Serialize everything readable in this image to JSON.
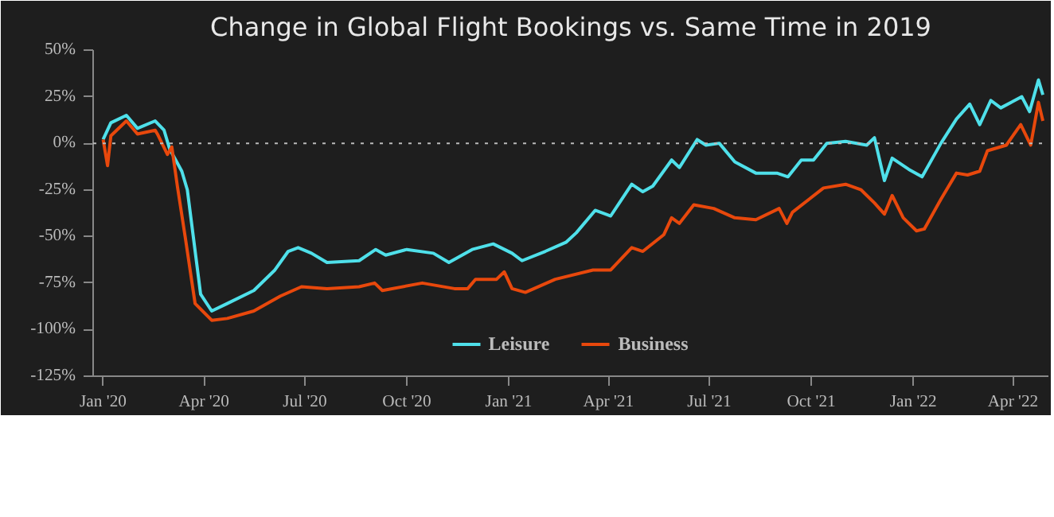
{
  "chart_data": {
    "type": "line",
    "title": "Change in Global Flight Bookings vs. Same Time in 2019",
    "xlim": [
      "2019-12-23",
      "2022-05-03"
    ],
    "ylim": [
      -125,
      50
    ],
    "xticks": [
      {
        "value": "2020-01-01",
        "label": "Jan '20"
      },
      {
        "value": "2020-04-01",
        "label": "Apr '20"
      },
      {
        "value": "2020-07-01",
        "label": "Jul '20"
      },
      {
        "value": "2020-10-01",
        "label": "Oct '20"
      },
      {
        "value": "2021-01-01",
        "label": "Jan '21"
      },
      {
        "value": "2021-04-01",
        "label": "Apr '21"
      },
      {
        "value": "2021-07-01",
        "label": "Jul '21"
      },
      {
        "value": "2021-10-01",
        "label": "Oct '21"
      },
      {
        "value": "2022-01-01",
        "label": "Jan '22"
      },
      {
        "value": "2022-04-01",
        "label": "Apr '22"
      }
    ],
    "yticks": [
      {
        "value": 50,
        "label": "50%"
      },
      {
        "value": 25,
        "label": "25%"
      },
      {
        "value": 0,
        "label": "0%"
      },
      {
        "value": -25,
        "label": "-25%"
      },
      {
        "value": -50,
        "label": "-50%"
      },
      {
        "value": -75,
        "label": "-75%"
      },
      {
        "value": -100,
        "label": "-100%"
      },
      {
        "value": -125,
        "label": "-125%"
      }
    ],
    "grid": false,
    "legend": "bottom",
    "line_style": "solid",
    "ref_lines": [
      {
        "axis": "y",
        "value": 0,
        "label": null,
        "color": "#bbbbbb",
        "line_style": "dotted"
      }
    ],
    "series": [
      {
        "name": "Leisure",
        "color": "#4fe0ea",
        "x": [
          "2020-01-01",
          "2020-01-08",
          "2020-01-22",
          "2020-02-01",
          "2020-02-17",
          "2020-02-25",
          "2020-03-01",
          "2020-03-12",
          "2020-03-17",
          "2020-03-29",
          "2020-04-08",
          "2020-04-22",
          "2020-05-16",
          "2020-06-04",
          "2020-06-16",
          "2020-06-25",
          "2020-07-07",
          "2020-07-21",
          "2020-08-19",
          "2020-09-03",
          "2020-09-12",
          "2020-10-01",
          "2020-10-25",
          "2020-11-08",
          "2020-11-29",
          "2020-12-18",
          "2021-01-04",
          "2021-01-13",
          "2021-02-03",
          "2021-02-22",
          "2021-03-03",
          "2021-03-20",
          "2021-04-03",
          "2021-04-22",
          "2021-05-02",
          "2021-05-11",
          "2021-05-28",
          "2021-06-04",
          "2021-06-20",
          "2021-06-28",
          "2021-07-10",
          "2021-07-24",
          "2021-08-12",
          "2021-08-31",
          "2021-09-10",
          "2021-09-22",
          "2021-10-03",
          "2021-10-15",
          "2021-11-01",
          "2021-11-20",
          "2021-11-27",
          "2021-12-06",
          "2021-12-13",
          "2021-12-28",
          "2022-01-09",
          "2022-01-26",
          "2022-02-09",
          "2022-02-21",
          "2022-03-02",
          "2022-03-12",
          "2022-03-21",
          "2022-04-09",
          "2022-04-16",
          "2022-04-24",
          "2022-04-28"
        ],
        "values": [
          2,
          11,
          15,
          8,
          12,
          7,
          -3,
          -15,
          -25,
          -81,
          -90,
          -86,
          -79,
          -68,
          -58,
          -56,
          -59,
          -64,
          -63,
          -57,
          -60,
          -57,
          -59,
          -64,
          -57,
          -54,
          -59,
          -63,
          -58,
          -53,
          -48,
          -36,
          -39,
          -22,
          -26,
          -23,
          -9,
          -13,
          2,
          -1,
          0,
          -10,
          -16,
          -16,
          -18,
          -9,
          -9,
          0,
          1,
          -1,
          3,
          -20,
          -8,
          -14,
          -18,
          0,
          13,
          21,
          10,
          23,
          19,
          25,
          17,
          34,
          26
        ]
      },
      {
        "name": "Business",
        "color": "#e8480c",
        "x": [
          "2020-01-01",
          "2020-01-05",
          "2020-01-08",
          "2020-01-22",
          "2020-02-01",
          "2020-02-17",
          "2020-02-19",
          "2020-02-28",
          "2020-03-03",
          "2020-03-08",
          "2020-03-15",
          "2020-03-24",
          "2020-04-08",
          "2020-04-22",
          "2020-05-16",
          "2020-06-09",
          "2020-06-28",
          "2020-07-21",
          "2020-08-19",
          "2020-09-02",
          "2020-09-09",
          "2020-10-15",
          "2020-11-13",
          "2020-11-25",
          "2020-12-02",
          "2020-12-21",
          "2020-12-28",
          "2021-01-04",
          "2021-01-16",
          "2021-02-12",
          "2021-03-18",
          "2021-04-03",
          "2021-04-22",
          "2021-05-02",
          "2021-05-21",
          "2021-05-28",
          "2021-06-04",
          "2021-06-17",
          "2021-07-05",
          "2021-07-24",
          "2021-08-12",
          "2021-09-02",
          "2021-09-09",
          "2021-09-14",
          "2021-10-12",
          "2021-11-01",
          "2021-11-15",
          "2021-11-27",
          "2021-12-06",
          "2021-12-13",
          "2021-12-23",
          "2022-01-04",
          "2022-01-11",
          "2022-01-26",
          "2022-02-09",
          "2022-02-19",
          "2022-03-02",
          "2022-03-09",
          "2022-03-26",
          "2022-04-08",
          "2022-04-17",
          "2022-04-24",
          "2022-04-28"
        ],
        "values": [
          2,
          -12,
          4,
          12,
          5,
          7,
          5,
          -6,
          -2,
          -23,
          -50,
          -86,
          -95,
          -94,
          -90,
          -82,
          -77,
          -78,
          -77,
          -75,
          -79,
          -75,
          -78,
          -78,
          -73,
          -73,
          -69,
          -78,
          -80,
          -73,
          -68,
          -68,
          -56,
          -58,
          -49,
          -40,
          -43,
          -33,
          -35,
          -40,
          -41,
          -35,
          -43,
          -37,
          -24,
          -22,
          -25,
          -32,
          -38,
          -28,
          -40,
          -47,
          -46,
          -30,
          -16,
          -17,
          -15,
          -4,
          -1,
          10,
          -1,
          22,
          12
        ]
      }
    ]
  }
}
